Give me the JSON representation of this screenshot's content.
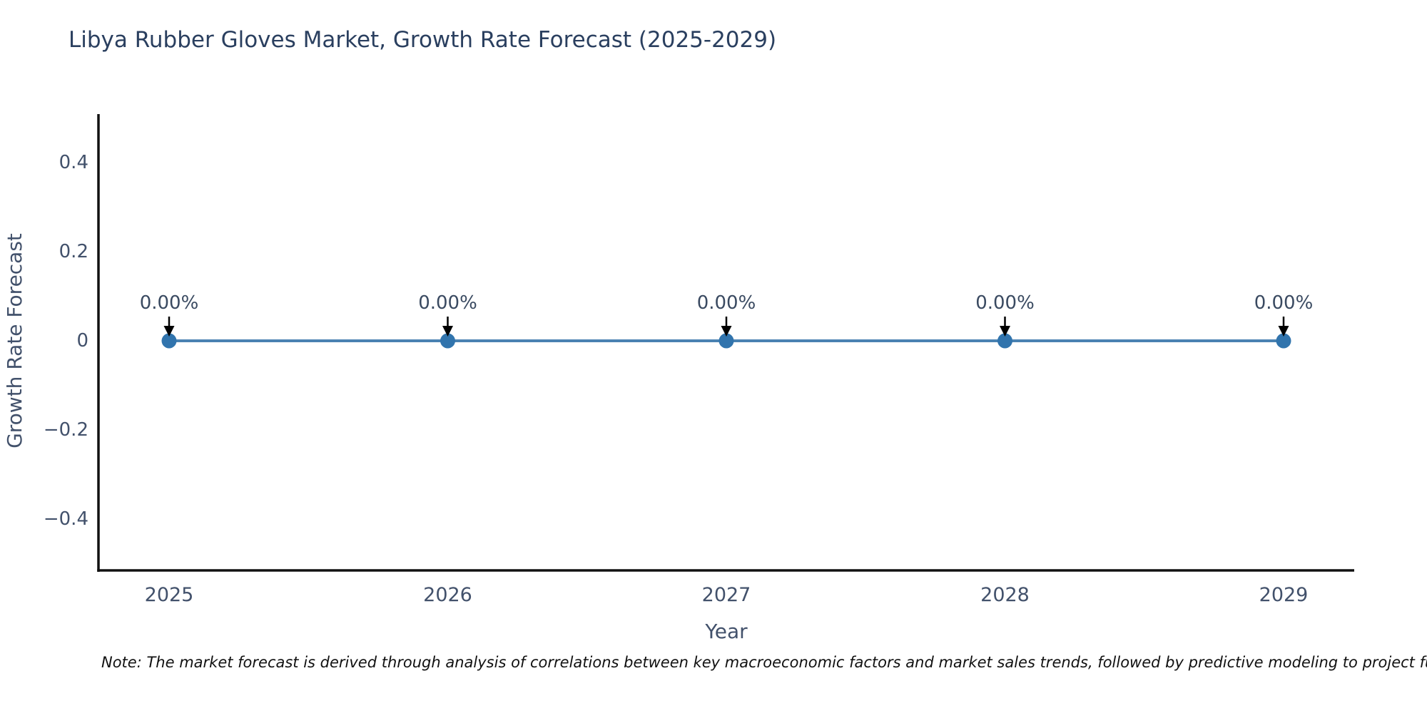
{
  "chart_data": {
    "type": "line",
    "title": "Libya Rubber Gloves Market, Growth Rate Forecast (2025-2029)",
    "x": [
      2025,
      2026,
      2027,
      2028,
      2029
    ],
    "categories": [
      "2025",
      "2026",
      "2027",
      "2028",
      "2029"
    ],
    "series": [
      {
        "name": "Growth Rate Forecast",
        "values": [
          0,
          0,
          0,
          0,
          0
        ],
        "point_labels": [
          "0.00%",
          "0.00%",
          "0.00%",
          "0.00%",
          "0.00%"
        ]
      }
    ],
    "xlabel": "Year",
    "ylabel": "Growth Rate Forecast",
    "ylim": [
      -0.51,
      0.51
    ],
    "ytick_values": [
      0.4,
      0.2,
      0,
      -0.2,
      -0.4
    ],
    "ytick_labels": [
      "0.4",
      "0.2",
      "0",
      "−0.2",
      "−0.4"
    ],
    "grid": false,
    "legend": "none",
    "colors": {
      "title": "#2a3f5f",
      "tick_label": "#42516b",
      "axis_label": "#42516b",
      "axis_line": "#111111",
      "series_line": "#4a82b2",
      "marker_fill": "#3174ad",
      "annotation_text": "#3a4a61",
      "annotation_arrow": "#000000",
      "note_text": "#111111",
      "background": "#ffffff"
    },
    "note": "Note: The market forecast is derived through analysis of correlations between key macroeconomic factors and market sales trends, followed by predictive modeling to project future sa"
  }
}
